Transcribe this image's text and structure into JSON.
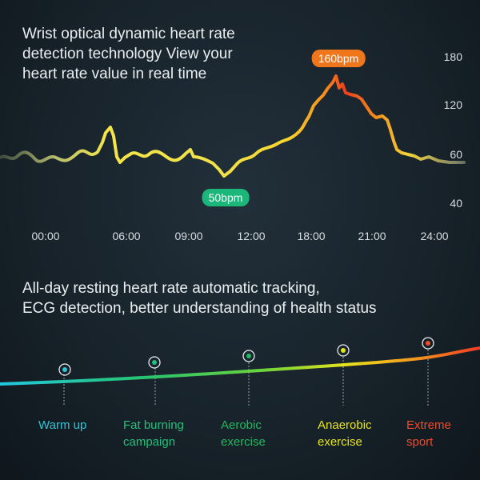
{
  "top": {
    "headline_lines": [
      "Wrist optical dynamic heart rate",
      "detection technology View your",
      "heart rate value in real time"
    ],
    "y_ticks": [
      "180",
      "120",
      "60",
      "40"
    ],
    "x_ticks": [
      "00:00",
      "06:00",
      "09:00",
      "12:00",
      "18:00",
      "21:00",
      "24:00"
    ],
    "peak_label": "160bpm",
    "low_label": "50bpm"
  },
  "bottom": {
    "headline_lines": [
      "All-day resting heart rate automatic tracking,",
      "ECG detection, better understanding of health status"
    ],
    "zones": [
      {
        "line1": "Warm up",
        "line2": "",
        "color": "#2ec6d8"
      },
      {
        "line1": "Fat burning",
        "line2": "campaign",
        "color": "#22c27a"
      },
      {
        "line1": "Aerobic",
        "line2": "exercise",
        "color": "#21b95f"
      },
      {
        "line1": "Anaerobic",
        "line2": "exercise",
        "color": "#e6e51c"
      },
      {
        "line1": "Extreme",
        "line2": "sport",
        "color": "#f04a2a"
      }
    ]
  }
}
